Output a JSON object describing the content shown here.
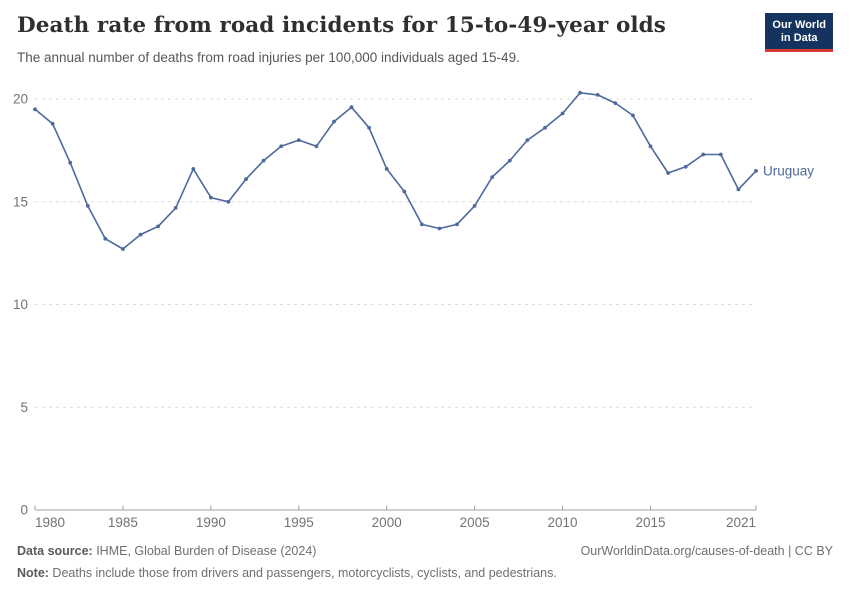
{
  "header": {
    "title": "Death rate from road incidents for 15-to-49-year olds",
    "subtitle": "The annual number of deaths from road injuries per 100,000 individuals aged 15-49.",
    "logo": {
      "line1": "Our World",
      "line2": "in Data"
    }
  },
  "chart_data": {
    "type": "line",
    "title": "Death rate from road incidents for 15-to-49-year olds",
    "x": [
      1980,
      1981,
      1982,
      1983,
      1984,
      1985,
      1986,
      1987,
      1988,
      1989,
      1990,
      1991,
      1992,
      1993,
      1994,
      1995,
      1996,
      1997,
      1998,
      1999,
      2000,
      2001,
      2002,
      2003,
      2004,
      2005,
      2006,
      2007,
      2008,
      2009,
      2010,
      2011,
      2012,
      2013,
      2014,
      2015,
      2016,
      2017,
      2018,
      2019,
      2020,
      2021
    ],
    "series": [
      {
        "name": "Uruguay",
        "values": [
          19.5,
          18.8,
          16.9,
          14.8,
          13.2,
          12.7,
          13.4,
          13.8,
          14.7,
          16.6,
          15.2,
          15.0,
          16.1,
          17.0,
          17.7,
          18.0,
          17.7,
          18.9,
          19.6,
          18.6,
          16.6,
          15.5,
          13.9,
          13.7,
          13.9,
          14.8,
          16.2,
          17.0,
          18.0,
          18.6,
          19.3,
          20.3,
          20.2,
          19.8,
          19.2,
          17.7,
          16.4,
          16.7,
          17.3,
          17.3,
          15.6,
          16.5
        ]
      }
    ],
    "x_ticks": [
      1980,
      1985,
      1990,
      1995,
      2000,
      2005,
      2010,
      2015,
      2021
    ],
    "y_ticks": [
      0,
      5,
      10,
      15,
      20
    ],
    "xlim": [
      1980,
      2021
    ],
    "ylim": [
      0,
      20
    ],
    "xlabel": "",
    "ylabel": "",
    "grid": "horizontal-dashed",
    "legend_position": "end-of-line-label"
  },
  "footer": {
    "datasource_label": "Data source:",
    "datasource_text": " IHME, Global Burden of Disease (2024)",
    "link": "OurWorldinData.org/causes-of-death | CC BY",
    "note_label": "Note:",
    "note_text": " Deaths include those from drivers and passengers, motorcyclists, cyclists, and pedestrians."
  },
  "colors": {
    "line": "#4C6A9C",
    "grid": "#dcdcdc",
    "axis": "#a0a0a0",
    "tick_label": "#737373",
    "logo_bg": "#15335F",
    "logo_accent": "#D93A34"
  }
}
